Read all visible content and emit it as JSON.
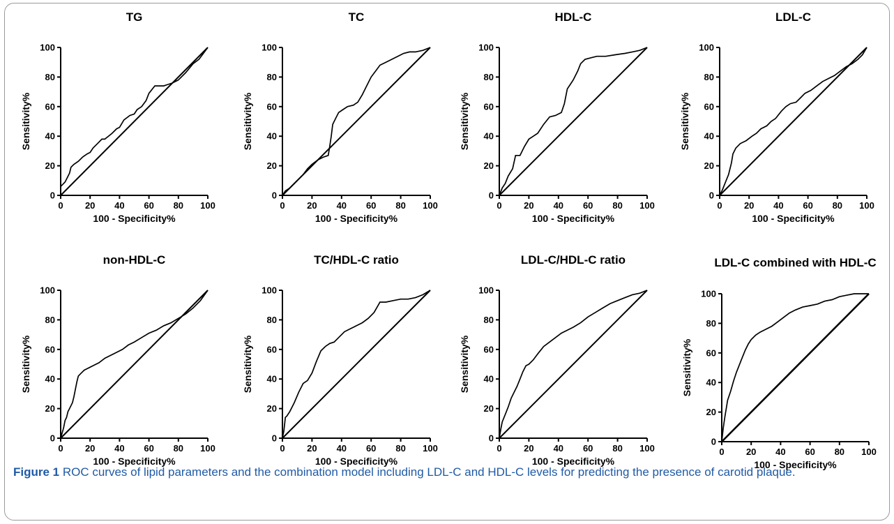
{
  "caption": {
    "label": "Figure 1",
    "text": " ROC curves of lipid parameters and the combination model including LDL-C and HDL-C levels for predicting the presence of carotid plaque."
  },
  "chart_data": [
    {
      "type": "line",
      "title": "TG",
      "xlabel": "100 - Specificity%",
      "ylabel": "Sensitivity%",
      "xlim": [
        0,
        100
      ],
      "ylim": [
        0,
        100
      ],
      "xticks": [
        "0",
        "20",
        "40",
        "60",
        "80",
        "100"
      ],
      "yticks": [
        "0",
        "20",
        "40",
        "60",
        "80",
        "100"
      ],
      "series": [
        {
          "x": [
            0,
            0,
            3,
            6,
            7,
            9,
            12,
            15,
            18,
            20,
            22,
            25,
            28,
            30,
            35,
            38,
            40,
            43,
            47,
            50,
            52,
            55,
            58,
            60,
            64,
            66,
            70,
            73,
            76,
            80,
            85,
            90,
            94,
            97,
            100
          ],
          "y": [
            0,
            6,
            9,
            15,
            19,
            21,
            23,
            26,
            28,
            29,
            32,
            35,
            38,
            38,
            42,
            45,
            46,
            51,
            54,
            55,
            58,
            60,
            64,
            69,
            74,
            74,
            74,
            75,
            76,
            78,
            83,
            89,
            92,
            96,
            100
          ]
        },
        {
          "x": [
            0,
            100
          ],
          "y": [
            0,
            100
          ]
        }
      ]
    },
    {
      "type": "line",
      "title": "TC",
      "xlabel": "100 - Specificity%",
      "ylabel": "Sensitivity%",
      "xlim": [
        0,
        100
      ],
      "ylim": [
        0,
        100
      ],
      "xticks": [
        "0",
        "20",
        "40",
        "60",
        "80",
        "100"
      ],
      "yticks": [
        "0",
        "20",
        "40",
        "60",
        "80",
        "100"
      ],
      "series": [
        {
          "x": [
            0,
            2,
            5,
            8,
            11,
            14,
            17,
            20,
            24,
            28,
            31,
            32,
            33,
            34,
            36,
            38,
            41,
            44,
            48,
            51,
            54,
            57,
            60,
            63,
            66,
            70,
            74,
            78,
            82,
            86,
            90,
            95,
            100
          ],
          "y": [
            0,
            3,
            5,
            8,
            11,
            14,
            18,
            21,
            24,
            26,
            27,
            33,
            40,
            48,
            52,
            56,
            58,
            60,
            61,
            63,
            68,
            74,
            80,
            84,
            88,
            90,
            92,
            94,
            96,
            97,
            97,
            98,
            100
          ]
        },
        {
          "x": [
            0,
            100
          ],
          "y": [
            0,
            100
          ]
        }
      ]
    },
    {
      "type": "line",
      "title": "HDL-C",
      "xlabel": "100 - Specificity%",
      "ylabel": "Sensitivity%",
      "xlim": [
        0,
        100
      ],
      "ylim": [
        0,
        100
      ],
      "xticks": [
        "0",
        "20",
        "40",
        "60",
        "80",
        "100"
      ],
      "yticks": [
        "0",
        "20",
        "40",
        "60",
        "80",
        "100"
      ],
      "series": [
        {
          "x": [
            0,
            2,
            4,
            6,
            9,
            11,
            14,
            17,
            20,
            23,
            26,
            30,
            34,
            38,
            42,
            44,
            46,
            48,
            50,
            53,
            55,
            58,
            62,
            66,
            72,
            78,
            85,
            90,
            95,
            100
          ],
          "y": [
            0,
            5,
            8,
            13,
            18,
            27,
            27,
            33,
            38,
            40,
            42,
            48,
            53,
            54,
            56,
            62,
            72,
            75,
            78,
            84,
            89,
            92,
            93,
            94,
            94,
            95,
            96,
            97,
            98,
            100
          ]
        },
        {
          "x": [
            0,
            100
          ],
          "y": [
            0,
            100
          ]
        }
      ]
    },
    {
      "type": "line",
      "title": "LDL-C",
      "xlabel": "100 - Specificity%",
      "ylabel": "Sensitivity%",
      "xlim": [
        0,
        100
      ],
      "ylim": [
        0,
        100
      ],
      "xticks": [
        "0",
        "20",
        "40",
        "60",
        "80",
        "100"
      ],
      "yticks": [
        "0",
        "20",
        "40",
        "60",
        "80",
        "100"
      ],
      "series": [
        {
          "x": [
            0,
            2,
            4,
            6,
            8,
            9,
            11,
            14,
            18,
            22,
            25,
            28,
            32,
            35,
            38,
            42,
            45,
            48,
            52,
            55,
            58,
            62,
            66,
            70,
            74,
            78,
            82,
            86,
            90,
            94,
            97,
            100
          ],
          "y": [
            0,
            4,
            9,
            14,
            22,
            28,
            32,
            35,
            37,
            40,
            42,
            45,
            47,
            50,
            52,
            57,
            60,
            62,
            63,
            66,
            69,
            71,
            74,
            77,
            79,
            81,
            84,
            87,
            89,
            92,
            95,
            100
          ]
        },
        {
          "x": [
            0,
            100
          ],
          "y": [
            0,
            100
          ]
        }
      ]
    },
    {
      "type": "line",
      "title": "non-HDL-C",
      "xlabel": "100 - Specificity%",
      "ylabel": "Sensitivity%",
      "xlim": [
        0,
        100
      ],
      "ylim": [
        0,
        100
      ],
      "xticks": [
        "0",
        "20",
        "40",
        "60",
        "80",
        "100"
      ],
      "yticks": [
        "0",
        "20",
        "40",
        "60",
        "80",
        "100"
      ],
      "series": [
        {
          "x": [
            0,
            2,
            3,
            4,
            5,
            6,
            8,
            9,
            10,
            11,
            12,
            13,
            14,
            16,
            18,
            22,
            26,
            30,
            34,
            38,
            42,
            46,
            50,
            55,
            60,
            65,
            70,
            75,
            80,
            85,
            90,
            95,
            100
          ],
          "y": [
            0,
            7,
            12,
            14,
            18,
            20,
            24,
            28,
            33,
            38,
            42,
            43,
            44,
            46,
            47,
            49,
            51,
            54,
            56,
            58,
            60,
            63,
            65,
            68,
            71,
            73,
            76,
            78,
            81,
            84,
            88,
            93,
            100
          ]
        },
        {
          "x": [
            0,
            100
          ],
          "y": [
            0,
            100
          ]
        }
      ]
    },
    {
      "type": "line",
      "title": "TC/HDL-C ratio",
      "xlabel": "100 - Specificity%",
      "ylabel": "Sensitivity%",
      "xlim": [
        0,
        100
      ],
      "ylim": [
        0,
        100
      ],
      "xticks": [
        "0",
        "20",
        "40",
        "60",
        "80",
        "100"
      ],
      "yticks": [
        "0",
        "20",
        "40",
        "60",
        "80",
        "100"
      ],
      "series": [
        {
          "x": [
            0,
            1,
            2,
            3,
            5,
            8,
            11,
            14,
            17,
            20,
            23,
            26,
            29,
            32,
            35,
            38,
            42,
            46,
            50,
            54,
            58,
            62,
            66,
            70,
            75,
            80,
            85,
            90,
            95,
            100
          ],
          "y": [
            0,
            5,
            14,
            15,
            18,
            24,
            31,
            37,
            39,
            44,
            52,
            59,
            62,
            64,
            65,
            68,
            72,
            74,
            76,
            78,
            81,
            85,
            92,
            92,
            93,
            94,
            94,
            95,
            97,
            100
          ]
        },
        {
          "x": [
            0,
            100
          ],
          "y": [
            0,
            100
          ]
        }
      ]
    },
    {
      "type": "line",
      "title": "LDL-C/HDL-C ratio",
      "xlabel": "100 - Specificity%",
      "ylabel": "Sensitivity%",
      "xlim": [
        0,
        100
      ],
      "ylim": [
        0,
        100
      ],
      "xticks": [
        "0",
        "20",
        "40",
        "60",
        "80",
        "100"
      ],
      "yticks": [
        "0",
        "20",
        "40",
        "60",
        "80",
        "100"
      ],
      "series": [
        {
          "x": [
            0,
            1,
            2,
            4,
            6,
            8,
            10,
            12,
            14,
            16,
            18,
            20,
            23,
            26,
            30,
            34,
            38,
            42,
            46,
            50,
            55,
            60,
            65,
            70,
            75,
            80,
            85,
            90,
            95,
            100
          ],
          "y": [
            0,
            6,
            11,
            16,
            21,
            27,
            31,
            35,
            40,
            45,
            49,
            50,
            53,
            57,
            62,
            65,
            68,
            71,
            73,
            75,
            78,
            82,
            85,
            88,
            91,
            93,
            95,
            97,
            98,
            100
          ]
        },
        {
          "x": [
            0,
            100
          ],
          "y": [
            0,
            100
          ]
        }
      ]
    },
    {
      "type": "line",
      "title": "LDL-C combined with HDL-C",
      "xlabel": "100 - Specificity%",
      "ylabel": "Sensitivity%",
      "xlim": [
        0,
        100
      ],
      "ylim": [
        0,
        100
      ],
      "xticks": [
        "0",
        "20",
        "40",
        "60",
        "80",
        "100"
      ],
      "yticks": [
        "0",
        "20",
        "40",
        "60",
        "80",
        "100"
      ],
      "series": [
        {
          "x": [
            0,
            1,
            2,
            3,
            4,
            6,
            8,
            10,
            12,
            14,
            16,
            18,
            20,
            23,
            26,
            30,
            34,
            38,
            42,
            46,
            50,
            55,
            60,
            65,
            70,
            75,
            80,
            85,
            90,
            95,
            100
          ],
          "y": [
            0,
            9,
            16,
            22,
            28,
            34,
            41,
            47,
            52,
            57,
            62,
            66,
            69,
            72,
            74,
            76,
            78,
            81,
            84,
            87,
            89,
            91,
            92,
            93,
            95,
            96,
            98,
            99,
            100,
            100,
            100
          ]
        },
        {
          "x": [
            0,
            100
          ],
          "y": [
            0,
            100
          ]
        }
      ]
    }
  ]
}
